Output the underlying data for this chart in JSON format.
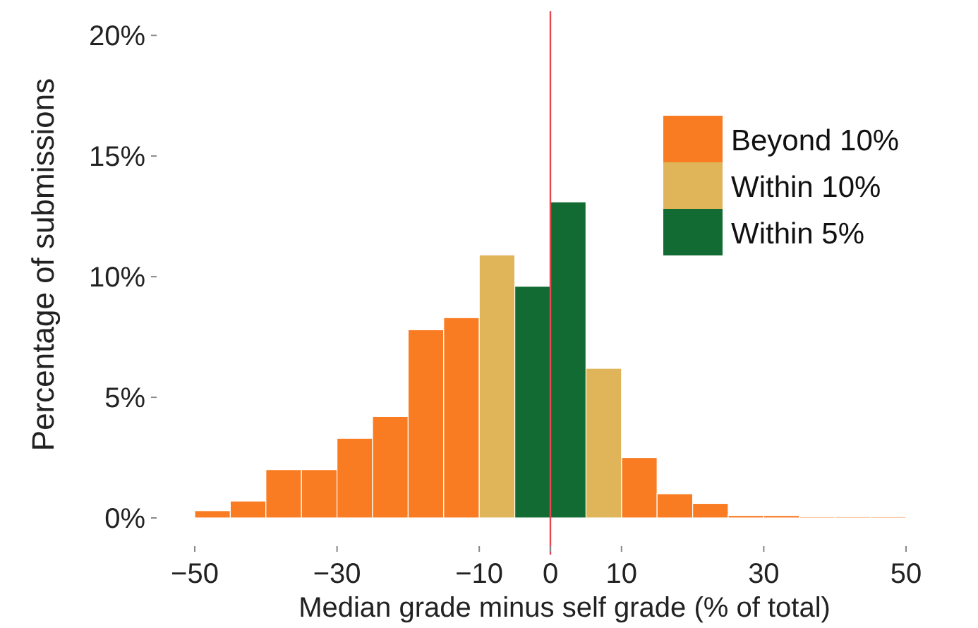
{
  "chart_data": {
    "type": "histogram",
    "xlabel": "Median grade minus self grade (% of total)",
    "ylabel": "Percentage of submissions",
    "bins": [
      -50,
      -45,
      -40,
      -35,
      -30,
      -25,
      -20,
      -15,
      -10,
      -5,
      0,
      5,
      10,
      15,
      20,
      25,
      30,
      35,
      40,
      45,
      50
    ],
    "series": [
      {
        "name": "Beyond 10%",
        "color": "#f97b22",
        "values": [
          0.3,
          0.7,
          2.0,
          2.0,
          3.3,
          4.2,
          7.8,
          8.3,
          null,
          null,
          null,
          null,
          2.5,
          1.0,
          0.6,
          0.1,
          0.1,
          0.05,
          0.05,
          0.05
        ]
      },
      {
        "name": "Within 10%",
        "color": "#e0b55a",
        "values": [
          null,
          null,
          null,
          null,
          null,
          null,
          null,
          null,
          10.9,
          null,
          null,
          6.2,
          null,
          null,
          null,
          null,
          null,
          null,
          null,
          null
        ]
      },
      {
        "name": "Within 5%",
        "color": "#136b34",
        "values": [
          null,
          null,
          null,
          null,
          null,
          null,
          null,
          null,
          null,
          9.6,
          13.1,
          null,
          null,
          null,
          null,
          null,
          null,
          null,
          null,
          null
        ]
      }
    ],
    "xlim": [
      -50,
      50
    ],
    "ylim": [
      0,
      21
    ],
    "xticks": [
      {
        "value": -50,
        "label": "−50"
      },
      {
        "value": -30,
        "label": "−30"
      },
      {
        "value": -10,
        "label": "−10"
      },
      0,
      10,
      30,
      50
    ],
    "yticks": [
      {
        "value": 0,
        "label": "0%"
      },
      {
        "value": 5,
        "label": "5%"
      },
      {
        "value": 10,
        "label": "10%"
      },
      {
        "value": 15,
        "label": "15%"
      },
      {
        "value": 20,
        "label": "20%"
      }
    ],
    "ref_lines": [
      {
        "axis": "x",
        "value": 0,
        "color": "#e8454f"
      }
    ],
    "legend": "top right",
    "grid": false
  }
}
